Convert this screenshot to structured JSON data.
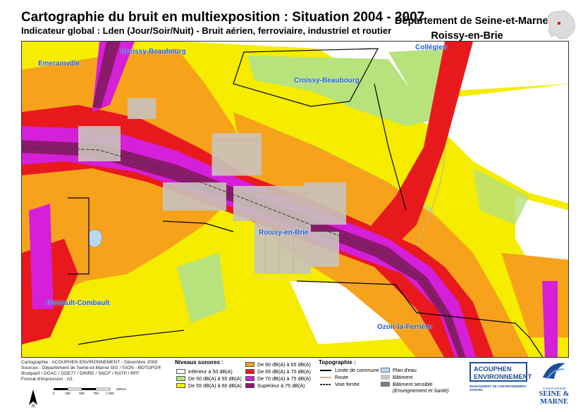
{
  "header": {
    "title": "Cartographie du bruit en multiexposition : Situation 2004 - 2007",
    "subtitle": "Indicateur global : Lden (Jour/Soir/Nuit) - Bruit aérien, ferroviaire, industriel et routier",
    "department": "Département de Seine-et-Marne",
    "commune": "Roissy-en-Brie"
  },
  "map": {
    "places": [
      {
        "id": "emerainville",
        "label": "Emerainville"
      },
      {
        "id": "croissy-beaubourg-north",
        "label": "Croissy-Beaubourg"
      },
      {
        "id": "croissy-beaubourg",
        "label": "Croissy-Beaubourg"
      },
      {
        "id": "collegien",
        "label": "Collégien"
      },
      {
        "id": "roissy-en-brie",
        "label": "Roissy-en-Brie"
      },
      {
        "id": "pontault-combault",
        "label": "Pontault-Combault"
      },
      {
        "id": "ozoir-la-ferriere",
        "label": "Ozoir-la-Ferrière"
      }
    ],
    "colors": {
      "below_50": "#ffffff",
      "50_55": "#b7e27c",
      "55_60": "#f5ec00",
      "60_65": "#f7a21b",
      "65_70": "#e8191c",
      "70_75": "#d51fd8",
      "above_75": "#8a1a6b",
      "road": "#c8b49a",
      "building": "#c9c3bd",
      "water": "#b9d8f0",
      "commune_limit": "#000000"
    }
  },
  "credits": [
    "Cartographie : ACOUPHEN ENVIRONNEMENT - Décembre 2008",
    "Sources : Département de Seine-et-Marne-SIG / ©IGN - BDTOPO®",
    "Bruitparif / DGAC / DDE77 / DRIRE / SNCF / RATP / RFF",
    "Format d'impression : A3"
  ],
  "scale": {
    "ticks": [
      "0",
      "250",
      "500",
      "750",
      "1 000"
    ],
    "unit": "Mètres"
  },
  "north_label": "N",
  "legend": {
    "title": "Niveaux sonores :",
    "items": [
      {
        "label": "Inférieur à 50 dB(A)",
        "color": "#ffffff"
      },
      {
        "label": "De 50 dB(A) à 55 dB(A)",
        "color": "#b7e27c"
      },
      {
        "label": "De 55 dB(A) à 60 dB(A)",
        "color": "#f5ec00"
      },
      {
        "label": "De 60 dB(A) à 65 dB(A)",
        "color": "#f7a21b"
      },
      {
        "label": "De 65 dB(A) à 70 dB(A)",
        "color": "#e8191c"
      },
      {
        "label": "De 70 dB(A) à 75 dB(A)",
        "color": "#d51fd8"
      },
      {
        "label": "Supérieur à 75 dB(A)",
        "color": "#8a1a6b"
      }
    ]
  },
  "topography": {
    "title": "Topographie :",
    "lines": [
      {
        "label": "Limite de commune",
        "symbol": "commune-limit-line"
      },
      {
        "label": "Route",
        "symbol": "road-line"
      },
      {
        "label": "Voie ferrée",
        "symbol": "railway-line"
      }
    ],
    "areas": [
      {
        "label": "Plan d'eau",
        "color": "#b9d8f0"
      },
      {
        "label": "Bâtiment",
        "color": "#c9c3bd"
      },
      {
        "label": "Bâtiment sensible",
        "color": "#7b7b7b"
      }
    ],
    "sensitive_note": "(Enseignement et Santé)"
  },
  "logos": {
    "acouphen_line1": "ACOUPHEN",
    "acouphen_line2": "ENVIRONNEMENT",
    "acouphen_sub": "MANAGEMENT DE L'ENVIRONNEMENT SONORE",
    "cg_small": "Conseil Général",
    "cg_line1": "SEINE &",
    "cg_line2": "MARNE"
  }
}
